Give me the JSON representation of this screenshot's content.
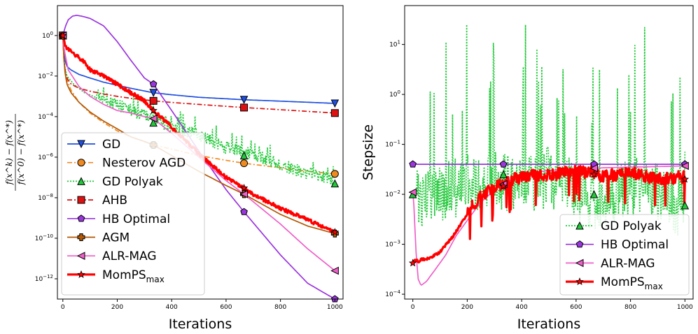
{
  "chart_data": [
    {
      "type": "line",
      "yscale": "log",
      "ylabel_numerator": "f(x^k) − f(x^*)",
      "ylabel_denominator": "f(x^0) − f(x^*)",
      "xlabel": "Iterations",
      "xlim": [
        -20,
        1030
      ],
      "ylim": [
        1e-13,
        30
      ],
      "xticks": [
        "0",
        "200",
        "400",
        "600",
        "800",
        "1000"
      ],
      "yticks": [
        "10^0",
        "10^-2",
        "10^-4",
        "10^-6",
        "10^-8",
        "10^-10",
        "10^-12"
      ],
      "legend_position": "lower-left",
      "grid": false,
      "series": [
        {
          "name": "GD",
          "color": "#1f4fe0",
          "style": "solid",
          "marker": "triangle-down",
          "x": [
            0,
            3,
            8,
            15,
            30,
            60,
            100,
            150,
            200,
            250,
            333,
            400,
            500,
            666,
            800,
            1000
          ],
          "y": [
            1,
            0.2,
            0.06,
            0.03,
            0.02,
            0.012,
            0.008,
            0.005,
            0.0035,
            0.0025,
            0.0015,
            0.0012,
            0.0009,
            0.00068,
            0.00058,
            0.00045
          ]
        },
        {
          "name": "Nesterov AGD",
          "color": "#f08a20",
          "style": "dashdot",
          "marker": "circle",
          "x": [
            0,
            3,
            10,
            30,
            60,
            100,
            150,
            200,
            250,
            333,
            400,
            500,
            600,
            666,
            800,
            900,
            1000
          ],
          "y": [
            1,
            0.1,
            0.01,
            0.002,
            0.0005,
            0.00015,
            5e-05,
            2e-05,
            1e-05,
            4e-06,
            2.5e-06,
            1.2e-06,
            7e-07,
            5e-07,
            3e-07,
            2e-07,
            1.5e-07
          ]
        },
        {
          "name": "GD Polyak",
          "color": "#22c93a",
          "style": "dotted",
          "marker": "triangle-up",
          "noisy": true,
          "x": [
            0,
            5,
            15,
            40,
            80,
            130,
            200,
            260,
            333,
            400,
            500,
            600,
            666,
            800,
            900,
            1000
          ],
          "y": [
            1,
            0.04,
            0.01,
            0.004,
            0.0015,
            0.0008,
            0.00025,
            0.00012,
            5e-05,
            2e-05,
            8e-06,
            2e-06,
            1.2e-06,
            3e-07,
            1e-07,
            5e-08
          ]
        },
        {
          "name": "AHB",
          "color": "#dd1111",
          "style": "dashdot",
          "marker": "square",
          "x": [
            0,
            3,
            8,
            15,
            30,
            60,
            100,
            150,
            200,
            250,
            333,
            400,
            500,
            666,
            800,
            1000
          ],
          "y": [
            1,
            0.1,
            0.02,
            0.008,
            0.004,
            0.0025,
            0.0018,
            0.0013,
            0.001,
            0.0008,
            0.0006,
            0.0005,
            0.0004,
            0.00028,
            0.00022,
            0.00015
          ]
        },
        {
          "name": "HB Optimal",
          "color": "#9a35dd",
          "style": "solid",
          "marker": "pentagon",
          "x": [
            0,
            10,
            20,
            35,
            50,
            70,
            100,
            150,
            200,
            250,
            300,
            333,
            400,
            500,
            600,
            666,
            800,
            900,
            1000
          ],
          "y": [
            1,
            3,
            6,
            9,
            10,
            9,
            7,
            3,
            0.5,
            0.06,
            0.008,
            0.004,
            0.0002,
            2e-06,
            2.5e-08,
            2e-09,
            1.5e-11,
            6e-13,
            1e-13
          ]
        },
        {
          "name": "AGM",
          "color": "#b35806",
          "style": "solid",
          "marker": "plus",
          "x": [
            0,
            3,
            8,
            15,
            30,
            60,
            100,
            150,
            200,
            250,
            300,
            333,
            400,
            500,
            600,
            666,
            800,
            900,
            1000
          ],
          "y": [
            1,
            0.1,
            0.015,
            0.004,
            0.0015,
            0.0005,
            0.00017,
            6e-05,
            2.5e-05,
            1e-05,
            6e-06,
            4e-06,
            1.2e-06,
            2e-07,
            4e-08,
            1.5e-08,
            1.5e-09,
            4e-10,
            1.7e-10
          ]
        },
        {
          "name": "ALR-MAG",
          "color": "#ef5fc9",
          "style": "solid",
          "marker": "triangle-left",
          "x": [
            0,
            5,
            20,
            60,
            100,
            150,
            200,
            250,
            300,
            333,
            400,
            500,
            600,
            666,
            800,
            900,
            1000
          ],
          "y": [
            1,
            0.2,
            0.02,
            0.003,
            0.001,
            0.0004,
            0.0002,
            0.00015,
            0.0001,
            8e-05,
            1.5e-05,
            1e-06,
            7e-08,
            1.5e-08,
            5e-10,
            3e-11,
            2.5e-12
          ]
        },
        {
          "name": "MomPS",
          "name_sub": "max",
          "color": "#ff0000",
          "style": "solid",
          "marker": "star",
          "thick": true,
          "noisy": true,
          "x": [
            0,
            10,
            20,
            50,
            80,
            100,
            150,
            200,
            250,
            300,
            333,
            400,
            500,
            600,
            666,
            700,
            800,
            900,
            1000
          ],
          "y": [
            1,
            0.3,
            0.2,
            0.1,
            0.05,
            0.02,
            0.01,
            0.004,
            0.0015,
            0.0006,
            0.0002,
            3e-05,
            1.5e-06,
            1e-07,
            3e-08,
            1.5e-08,
            3e-09,
            8e-10,
            2e-10
          ]
        }
      ]
    },
    {
      "type": "line",
      "yscale": "log",
      "ylabel": "Stepsize",
      "xlabel": "Iterations",
      "xlim": [
        -30,
        1030
      ],
      "ylim": [
        8e-05,
        60
      ],
      "xticks": [
        "0",
        "200",
        "400",
        "600",
        "800",
        "1000"
      ],
      "yticks": [
        "10^1",
        "10^0",
        "10^-1",
        "10^-2",
        "10^-3",
        "10^-4"
      ],
      "legend_position": "lower-right",
      "grid": false,
      "series": [
        {
          "name": "GD Polyak",
          "color": "#22c93a",
          "style": "dotted",
          "marker": "triangle-up",
          "noisy": true,
          "spiky": true,
          "x": [
            0,
            100,
            200,
            333,
            450,
            500,
            666,
            800,
            900,
            1000
          ],
          "y": [
            0.01,
            0.015,
            0.02,
            0.025,
            0.02,
            0.03,
            0.01,
            0.02,
            0.015,
            0.006
          ]
        },
        {
          "name": "HB Optimal",
          "color": "#9a35dd",
          "style": "solid",
          "marker": "pentagon",
          "x": [
            0,
            1000
          ],
          "y": [
            0.04,
            0.04
          ]
        },
        {
          "name": "ALR-MAG",
          "color": "#ef5fc9",
          "style": "solid",
          "marker": "triangle-left",
          "x": [
            0,
            5,
            10,
            15,
            20,
            30,
            50,
            80,
            120,
            160,
            200,
            250,
            300,
            333,
            400,
            500,
            600,
            700,
            800,
            900,
            1000
          ],
          "y": [
            0.011,
            0.005,
            0.001,
            0.0004,
            0.0002,
            0.00015,
            0.00018,
            0.0003,
            0.0006,
            0.0015,
            0.003,
            0.007,
            0.012,
            0.016,
            0.025,
            0.03,
            0.032,
            0.034,
            0.035,
            0.036,
            0.037
          ]
        },
        {
          "name": "MomPS",
          "name_sub": "max",
          "color": "#ff0000",
          "style": "solid",
          "marker": "star",
          "thick": true,
          "noisy": true,
          "x": [
            0,
            10,
            20,
            30,
            50,
            80,
            100,
            150,
            200,
            250,
            300,
            350,
            400,
            500,
            600,
            666,
            700,
            800,
            900,
            1000
          ],
          "y": [
            0.00042,
            0.0005,
            0.00045,
            0.0005,
            0.0005,
            0.0006,
            0.0007,
            0.0015,
            0.004,
            0.008,
            0.012,
            0.016,
            0.02,
            0.022,
            0.025,
            0.025,
            0.02,
            0.025,
            0.018,
            0.02
          ]
        }
      ]
    }
  ]
}
